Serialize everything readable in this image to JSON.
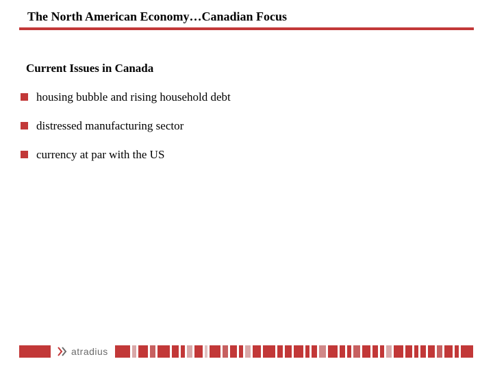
{
  "title": "The North American Economy…Canadian Focus",
  "subtitle": "Current Issues in Canada",
  "bullets": [
    "housing bubble and rising household debt",
    "distressed manufacturing sector",
    "currency at par with the US"
  ],
  "brand": {
    "name": "atradius",
    "accent_color": "#c23838",
    "logo_gray": "#6b6b6b"
  },
  "footer_stripes": {
    "colors": [
      "#c23838",
      "#d9a8a8",
      "#c23838",
      "#c76060",
      "#c23838",
      "#c23838",
      "#c23838",
      "#d9a8a8",
      "#c23838",
      "#e0c0c0",
      "#c23838",
      "#c76060",
      "#c23838",
      "#c23838",
      "#d9a8a8",
      "#c23838",
      "#c23838",
      "#c23838",
      "#c23838",
      "#c23838",
      "#c23838",
      "#c23838",
      "#d08888",
      "#c23838",
      "#c23838",
      "#c23838",
      "#c76060",
      "#c23838",
      "#c23838",
      "#c23838",
      "#d9a8a8",
      "#c23838",
      "#c23838",
      "#c23838",
      "#c23838",
      "#c23838",
      "#c76060",
      "#c23838",
      "#c23838",
      "#c23838"
    ],
    "widths": [
      22,
      6,
      14,
      8,
      18,
      10,
      6,
      8,
      12,
      4,
      16,
      8,
      10,
      6,
      8,
      12,
      18,
      8,
      10,
      14,
      6,
      8,
      10,
      14,
      8,
      6,
      10,
      12,
      8,
      6,
      8,
      14,
      10,
      6,
      8,
      10,
      8,
      12,
      6,
      18
    ]
  }
}
